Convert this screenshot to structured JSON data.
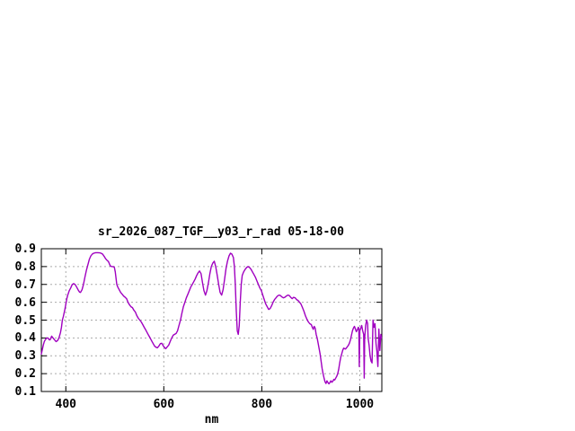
{
  "window": {
    "background": "#ffffff"
  },
  "chart_data": {
    "type": "line",
    "title": "sr_2026_087_TGF__y03_r_rad 05-18-00",
    "xlabel": "nm",
    "ylabel": "",
    "xlim": [
      350,
      1045
    ],
    "ylim": [
      0.1,
      0.9
    ],
    "x_ticks": [
      400,
      600,
      800,
      1000
    ],
    "y_ticks": [
      0.1,
      0.2,
      0.3,
      0.4,
      0.5,
      0.6,
      0.7,
      0.8,
      0.9
    ],
    "grid": true,
    "legend_position": "none",
    "line_color": "#a000c0",
    "grid_color": "#aaaaaa",
    "border_color": "#000000",
    "series": [
      {
        "name": "sr_2026_087_TGF__y03_r_rad",
        "points": [
          [
            350,
            0.31
          ],
          [
            352,
            0.335
          ],
          [
            354,
            0.36
          ],
          [
            356,
            0.38
          ],
          [
            358,
            0.39
          ],
          [
            361,
            0.4
          ],
          [
            364,
            0.4
          ],
          [
            366,
            0.39
          ],
          [
            368,
            0.39
          ],
          [
            371,
            0.41
          ],
          [
            374,
            0.4
          ],
          [
            377,
            0.39
          ],
          [
            380,
            0.38
          ],
          [
            383,
            0.385
          ],
          [
            386,
            0.4
          ],
          [
            389,
            0.43
          ],
          [
            391,
            0.46
          ],
          [
            393,
            0.5
          ],
          [
            395,
            0.52
          ],
          [
            398,
            0.56
          ],
          [
            400,
            0.59
          ],
          [
            402,
            0.62
          ],
          [
            404,
            0.64
          ],
          [
            407,
            0.665
          ],
          [
            410,
            0.68
          ],
          [
            413,
            0.7
          ],
          [
            416,
            0.705
          ],
          [
            419,
            0.7
          ],
          [
            422,
            0.685
          ],
          [
            425,
            0.67
          ],
          [
            428,
            0.657
          ],
          [
            430,
            0.655
          ],
          [
            433,
            0.67
          ],
          [
            436,
            0.7
          ],
          [
            439,
            0.74
          ],
          [
            442,
            0.78
          ],
          [
            445,
            0.81
          ],
          [
            448,
            0.84
          ],
          [
            451,
            0.86
          ],
          [
            454,
            0.87
          ],
          [
            457,
            0.875
          ],
          [
            461,
            0.878
          ],
          [
            465,
            0.878
          ],
          [
            469,
            0.877
          ],
          [
            472,
            0.875
          ],
          [
            475,
            0.87
          ],
          [
            478,
            0.858
          ],
          [
            481,
            0.845
          ],
          [
            484,
            0.835
          ],
          [
            487,
            0.828
          ],
          [
            489,
            0.815
          ],
          [
            491,
            0.803
          ],
          [
            494,
            0.8
          ],
          [
            497,
            0.8
          ],
          [
            499,
            0.795
          ],
          [
            501,
            0.77
          ],
          [
            504,
            0.7
          ],
          [
            506,
            0.685
          ],
          [
            509,
            0.67
          ],
          [
            512,
            0.655
          ],
          [
            515,
            0.645
          ],
          [
            518,
            0.635
          ],
          [
            521,
            0.628
          ],
          [
            524,
            0.62
          ],
          [
            527,
            0.6
          ],
          [
            530,
            0.585
          ],
          [
            533,
            0.575
          ],
          [
            536,
            0.57
          ],
          [
            539,
            0.555
          ],
          [
            542,
            0.545
          ],
          [
            545,
            0.525
          ],
          [
            548,
            0.51
          ],
          [
            551,
            0.5
          ],
          [
            554,
            0.49
          ],
          [
            557,
            0.475
          ],
          [
            560,
            0.46
          ],
          [
            563,
            0.445
          ],
          [
            566,
            0.43
          ],
          [
            569,
            0.415
          ],
          [
            572,
            0.4
          ],
          [
            575,
            0.385
          ],
          [
            578,
            0.37
          ],
          [
            581,
            0.355
          ],
          [
            584,
            0.348
          ],
          [
            587,
            0.345
          ],
          [
            590,
            0.355
          ],
          [
            593,
            0.368
          ],
          [
            596,
            0.37
          ],
          [
            599,
            0.355
          ],
          [
            602,
            0.345
          ],
          [
            604,
            0.34
          ],
          [
            607,
            0.35
          ],
          [
            610,
            0.36
          ],
          [
            613,
            0.38
          ],
          [
            616,
            0.4
          ],
          [
            619,
            0.415
          ],
          [
            622,
            0.42
          ],
          [
            625,
            0.425
          ],
          [
            628,
            0.44
          ],
          [
            631,
            0.47
          ],
          [
            634,
            0.5
          ],
          [
            637,
            0.54
          ],
          [
            640,
            0.575
          ],
          [
            643,
            0.6
          ],
          [
            646,
            0.625
          ],
          [
            649,
            0.645
          ],
          [
            652,
            0.665
          ],
          [
            655,
            0.685
          ],
          [
            658,
            0.7
          ],
          [
            661,
            0.715
          ],
          [
            664,
            0.73
          ],
          [
            667,
            0.75
          ],
          [
            670,
            0.765
          ],
          [
            673,
            0.775
          ],
          [
            676,
            0.76
          ],
          [
            679,
            0.71
          ],
          [
            682,
            0.665
          ],
          [
            685,
            0.64
          ],
          [
            688,
            0.665
          ],
          [
            691,
            0.71
          ],
          [
            694,
            0.76
          ],
          [
            697,
            0.8
          ],
          [
            700,
            0.82
          ],
          [
            703,
            0.83
          ],
          [
            706,
            0.8
          ],
          [
            709,
            0.75
          ],
          [
            712,
            0.7
          ],
          [
            715,
            0.655
          ],
          [
            718,
            0.64
          ],
          [
            721,
            0.67
          ],
          [
            724,
            0.73
          ],
          [
            727,
            0.79
          ],
          [
            730,
            0.83
          ],
          [
            733,
            0.86
          ],
          [
            736,
            0.875
          ],
          [
            739,
            0.87
          ],
          [
            742,
            0.85
          ],
          [
            744,
            0.8
          ],
          [
            746,
            0.7
          ],
          [
            748,
            0.55
          ],
          [
            750,
            0.44
          ],
          [
            752,
            0.42
          ],
          [
            754,
            0.47
          ],
          [
            756,
            0.6
          ],
          [
            758,
            0.7
          ],
          [
            760,
            0.75
          ],
          [
            763,
            0.77
          ],
          [
            766,
            0.785
          ],
          [
            769,
            0.795
          ],
          [
            772,
            0.8
          ],
          [
            775,
            0.795
          ],
          [
            778,
            0.785
          ],
          [
            781,
            0.77
          ],
          [
            784,
            0.755
          ],
          [
            787,
            0.74
          ],
          [
            790,
            0.72
          ],
          [
            793,
            0.7
          ],
          [
            796,
            0.68
          ],
          [
            799,
            0.665
          ],
          [
            802,
            0.64
          ],
          [
            805,
            0.615
          ],
          [
            808,
            0.59
          ],
          [
            811,
            0.575
          ],
          [
            814,
            0.56
          ],
          [
            817,
            0.565
          ],
          [
            820,
            0.58
          ],
          [
            823,
            0.6
          ],
          [
            826,
            0.615
          ],
          [
            829,
            0.625
          ],
          [
            832,
            0.635
          ],
          [
            835,
            0.64
          ],
          [
            838,
            0.638
          ],
          [
            841,
            0.63
          ],
          [
            844,
            0.625
          ],
          [
            847,
            0.628
          ],
          [
            850,
            0.635
          ],
          [
            853,
            0.64
          ],
          [
            856,
            0.638
          ],
          [
            859,
            0.628
          ],
          [
            862,
            0.62
          ],
          [
            865,
            0.628
          ],
          [
            868,
            0.625
          ],
          [
            871,
            0.615
          ],
          [
            874,
            0.61
          ],
          [
            877,
            0.6
          ],
          [
            880,
            0.59
          ],
          [
            883,
            0.57
          ],
          [
            886,
            0.55
          ],
          [
            889,
            0.525
          ],
          [
            892,
            0.505
          ],
          [
            895,
            0.49
          ],
          [
            898,
            0.48
          ],
          [
            901,
            0.475
          ],
          [
            903,
            0.46
          ],
          [
            905,
            0.448
          ],
          [
            907,
            0.465
          ],
          [
            909,
            0.455
          ],
          [
            911,
            0.42
          ],
          [
            913,
            0.4
          ],
          [
            915,
            0.37
          ],
          [
            917,
            0.34
          ],
          [
            919,
            0.31
          ],
          [
            921,
            0.27
          ],
          [
            923,
            0.23
          ],
          [
            925,
            0.2
          ],
          [
            927,
            0.175
          ],
          [
            929,
            0.155
          ],
          [
            931,
            0.145
          ],
          [
            933,
            0.16
          ],
          [
            935,
            0.15
          ],
          [
            937,
            0.143
          ],
          [
            939,
            0.15
          ],
          [
            941,
            0.16
          ],
          [
            943,
            0.152
          ],
          [
            945,
            0.158
          ],
          [
            947,
            0.168
          ],
          [
            949,
            0.165
          ],
          [
            951,
            0.175
          ],
          [
            953,
            0.185
          ],
          [
            955,
            0.2
          ],
          [
            957,
            0.225
          ],
          [
            959,
            0.26
          ],
          [
            961,
            0.29
          ],
          [
            963,
            0.31
          ],
          [
            965,
            0.33
          ],
          [
            967,
            0.343
          ],
          [
            969,
            0.34
          ],
          [
            971,
            0.338
          ],
          [
            973,
            0.345
          ],
          [
            975,
            0.352
          ],
          [
            977,
            0.36
          ],
          [
            979,
            0.372
          ],
          [
            981,
            0.39
          ],
          [
            983,
            0.415
          ],
          [
            985,
            0.44
          ],
          [
            987,
            0.455
          ],
          [
            989,
            0.465
          ],
          [
            991,
            0.45
          ],
          [
            993,
            0.435
          ],
          [
            995,
            0.445
          ],
          [
            997,
            0.46
          ],
          [
            998,
            0.455
          ],
          [
            999,
            0.24
          ],
          [
            1000,
            0.44
          ],
          [
            1002,
            0.455
          ],
          [
            1004,
            0.47
          ],
          [
            1006,
            0.44
          ],
          [
            1008,
            0.42
          ],
          [
            1009,
            0.175
          ],
          [
            1010,
            0.4
          ],
          [
            1012,
            0.47
          ],
          [
            1014,
            0.5
          ],
          [
            1016,
            0.48
          ],
          [
            1017,
            0.4
          ],
          [
            1019,
            0.36
          ],
          [
            1021,
            0.3
          ],
          [
            1023,
            0.27
          ],
          [
            1025,
            0.26
          ],
          [
            1027,
            0.5
          ],
          [
            1029,
            0.46
          ],
          [
            1031,
            0.48
          ],
          [
            1033,
            0.37
          ],
          [
            1035,
            0.325
          ],
          [
            1037,
            0.24
          ],
          [
            1039,
            0.45
          ],
          [
            1041,
            0.33
          ],
          [
            1043,
            0.42
          ],
          [
            1044,
            0.4
          ]
        ]
      }
    ]
  }
}
